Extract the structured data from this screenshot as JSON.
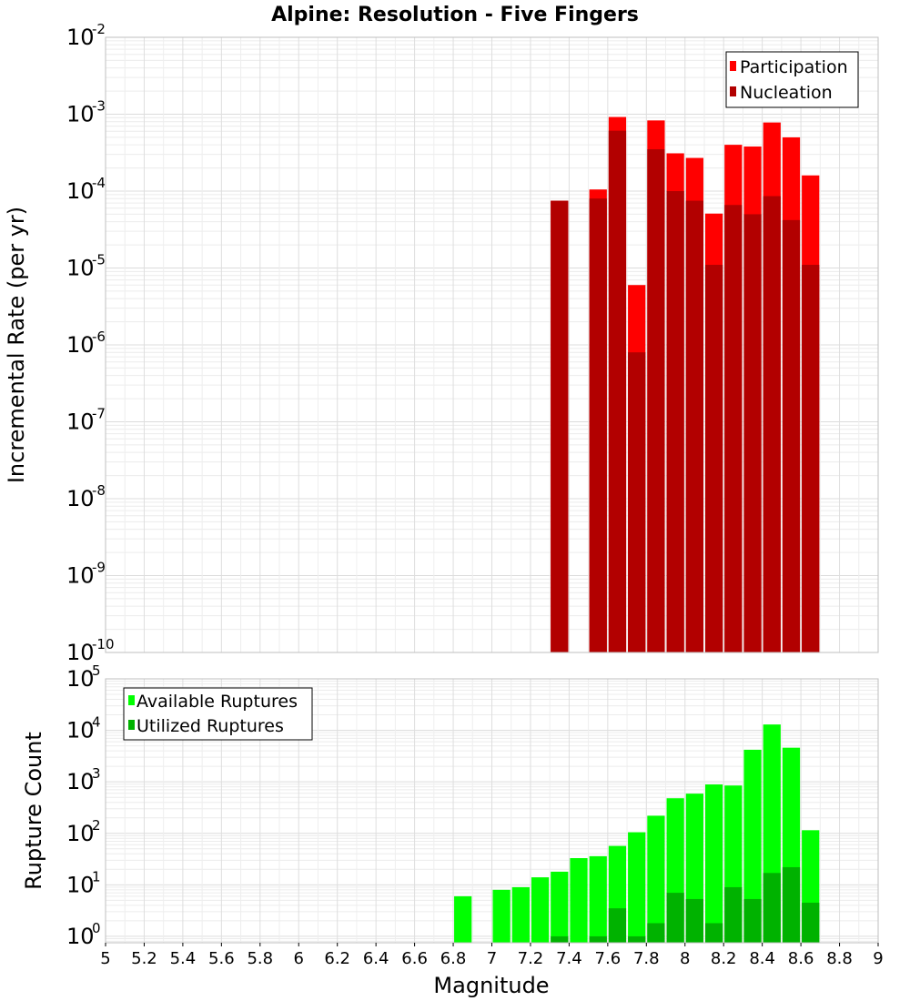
{
  "chart_data": [
    {
      "type": "bar",
      "title": "Alpine: Resolution - Five Fingers",
      "xlabel": "",
      "ylabel": "Incremental Rate (per yr)",
      "yscale": "log",
      "xlim": [
        5,
        9
      ],
      "ylim": [
        1e-10,
        0.01
      ],
      "bin_width": 0.1,
      "x_ticks": [
        "5",
        "5.2",
        "5.4",
        "5.6",
        "5.8",
        "6",
        "6.2",
        "6.4",
        "6.6",
        "6.8",
        "7",
        "7.2",
        "7.4",
        "7.6",
        "7.8",
        "8",
        "8.2",
        "8.4",
        "8.6",
        "8.8",
        "9"
      ],
      "y_ticks": [
        {
          "base": "10",
          "exp": "-10"
        },
        {
          "base": "10",
          "exp": "-9"
        },
        {
          "base": "10",
          "exp": "-8"
        },
        {
          "base": "10",
          "exp": "-7"
        },
        {
          "base": "10",
          "exp": "-6"
        },
        {
          "base": "10",
          "exp": "-5"
        },
        {
          "base": "10",
          "exp": "-4"
        },
        {
          "base": "10",
          "exp": "-3"
        },
        {
          "base": "10",
          "exp": "-2"
        }
      ],
      "grid": true,
      "legend_position": "top-right",
      "x": [
        7.35,
        7.55,
        7.65,
        7.75,
        7.85,
        7.95,
        8.05,
        8.15,
        8.25,
        8.35,
        8.45,
        8.55,
        8.65
      ],
      "series": [
        {
          "name": "Participation",
          "color": "#ff0000",
          "values": [
            7.5e-05,
            0.000105,
            0.00092,
            6e-06,
            0.00083,
            0.00031,
            0.00027,
            5.1e-05,
            0.0004,
            0.00038,
            0.00078,
            0.0005,
            0.00016
          ]
        },
        {
          "name": "Nucleation",
          "color": "#b20000",
          "values": [
            7.5e-05,
            8e-05,
            0.00061,
            8e-07,
            0.00035,
            0.0001,
            7.5e-05,
            1.1e-05,
            6.6e-05,
            5e-05,
            8.6e-05,
            4.2e-05,
            1.1e-05
          ]
        }
      ]
    },
    {
      "type": "bar",
      "title": "",
      "xlabel": "Magnitude",
      "ylabel": "Rupture Count",
      "yscale": "log",
      "xlim": [
        5,
        9
      ],
      "ylim": [
        0.75,
        100000.0
      ],
      "bin_width": 0.1,
      "x_ticks": [
        "5",
        "5.2",
        "5.4",
        "5.6",
        "5.8",
        "6",
        "6.2",
        "6.4",
        "6.6",
        "6.8",
        "7",
        "7.2",
        "7.4",
        "7.6",
        "7.8",
        "8",
        "8.2",
        "8.4",
        "8.6",
        "8.8",
        "9"
      ],
      "y_ticks": [
        {
          "base": "10",
          "exp": "0"
        },
        {
          "base": "10",
          "exp": "1"
        },
        {
          "base": "10",
          "exp": "2"
        },
        {
          "base": "10",
          "exp": "3"
        },
        {
          "base": "10",
          "exp": "4"
        },
        {
          "base": "10",
          "exp": "5"
        }
      ],
      "grid": true,
      "legend_position": "top-left",
      "x": [
        6.85,
        7.05,
        7.15,
        7.25,
        7.35,
        7.45,
        7.55,
        7.65,
        7.75,
        7.85,
        7.95,
        8.05,
        8.15,
        8.25,
        8.35,
        8.45,
        8.55,
        8.65
      ],
      "series": [
        {
          "name": "Available Ruptures",
          "color": "#00ff00",
          "values": [
            6,
            8,
            9,
            14,
            18,
            33,
            36,
            57,
            105,
            220,
            480,
            590,
            890,
            850,
            4200,
            13000,
            4600,
            115
          ]
        },
        {
          "name": "Utilized Ruptures",
          "color": "#00b200",
          "values": [
            0,
            0,
            0,
            0,
            1,
            0,
            1,
            3.5,
            1,
            1.8,
            7,
            5.3,
            1.8,
            9,
            5.3,
            17,
            22,
            4.5
          ]
        }
      ]
    }
  ]
}
